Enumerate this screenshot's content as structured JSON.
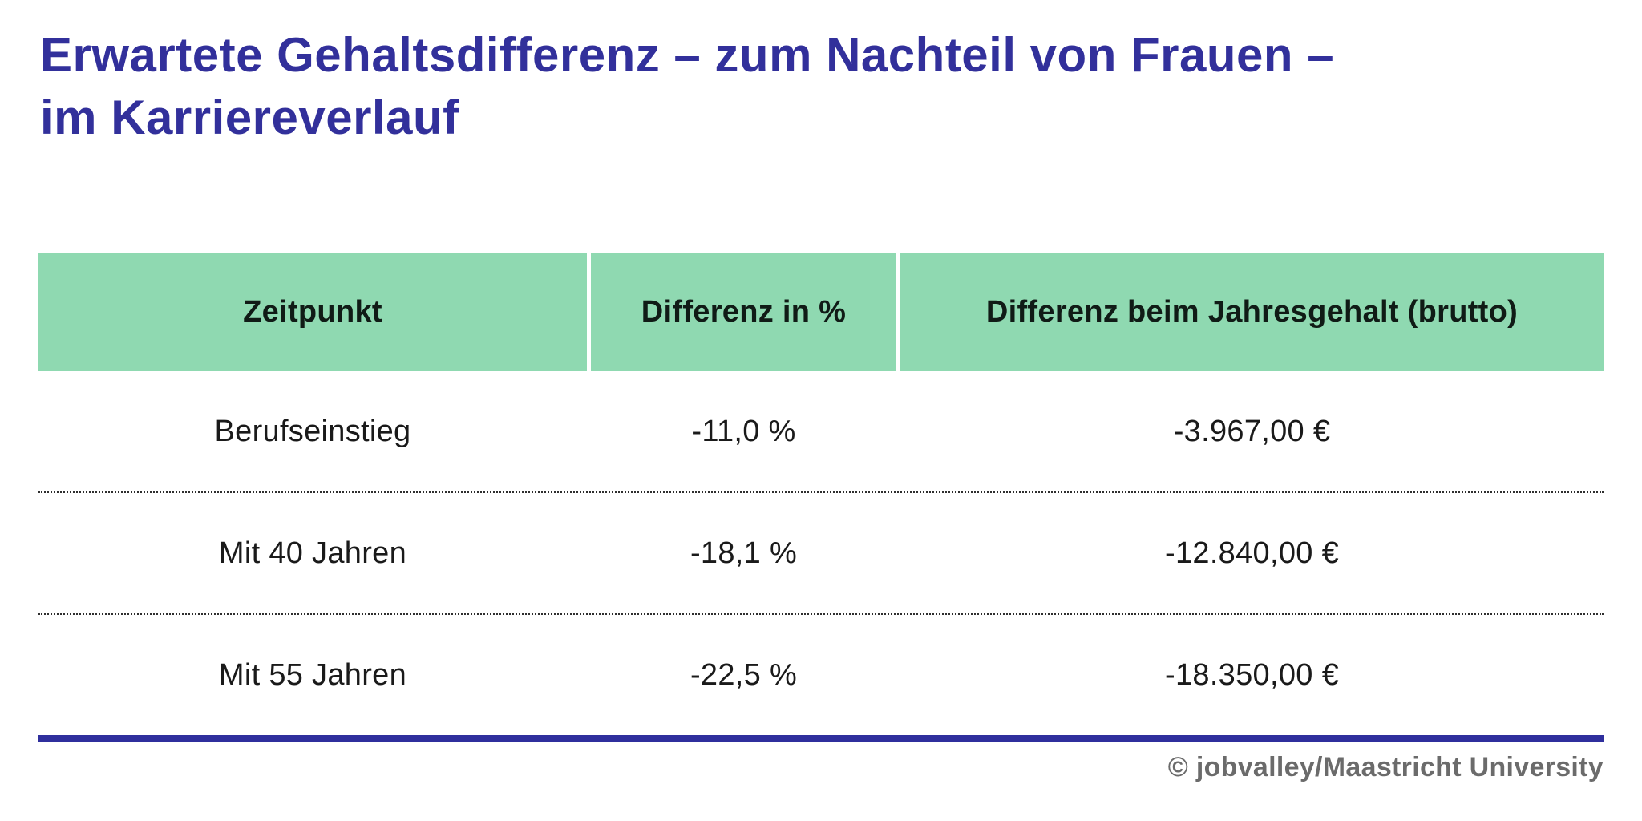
{
  "title": {
    "line1": "Erwartete Gehaltsdifferenz – zum Nachteil von Frauen –",
    "line2": "im Karriereverlauf"
  },
  "table": {
    "headers": [
      "Zeitpunkt",
      "Differenz in %",
      "Differenz beim Jahresgehalt (brutto)"
    ],
    "rows": [
      [
        "Berufseinstieg",
        "-11,0 %",
        "-3.967,00 €"
      ],
      [
        "Mit 40 Jahren",
        "-18,1 %",
        "-12.840,00 €"
      ],
      [
        "Mit 55 Jahren",
        "-22,5 %",
        "-18.350,00 €"
      ]
    ]
  },
  "footer": {
    "credit": "© jobvalley/Maastricht University"
  },
  "colors": {
    "title_text": "#32309B",
    "header_bg": "#8FD9B1",
    "header_text": "#101B16",
    "body_text": "#1A1A1A",
    "accent_line": "#2F2F9D",
    "credit_text": "#6B6B6B",
    "background": "#FFFFFF"
  },
  "chart_data": {
    "type": "table",
    "title": "Erwartete Gehaltsdifferenz – zum Nachteil von Frauen – im Karriereverlauf",
    "columns": [
      "Zeitpunkt",
      "Differenz in %",
      "Differenz beim Jahresgehalt (brutto)"
    ],
    "rows": [
      [
        "Berufseinstieg",
        "-11,0 %",
        "-3.967,00 €"
      ],
      [
        "Mit 40 Jahren",
        "-18,1 %",
        "-12.840,00 €"
      ],
      [
        "Mit 55 Jahren",
        "-22,5 %",
        "-18.350,00 €"
      ]
    ],
    "categories": [
      "Berufseinstieg",
      "Mit 40 Jahren",
      "Mit 55 Jahren"
    ],
    "series": [
      {
        "name": "Differenz in %",
        "values": [
          -11.0,
          -18.1,
          -22.5
        ]
      },
      {
        "name": "Differenz beim Jahresgehalt (brutto), EUR",
        "values": [
          -3967.0,
          -12840.0,
          -18350.0
        ]
      }
    ],
    "source": "© jobvalley/Maastricht University"
  }
}
